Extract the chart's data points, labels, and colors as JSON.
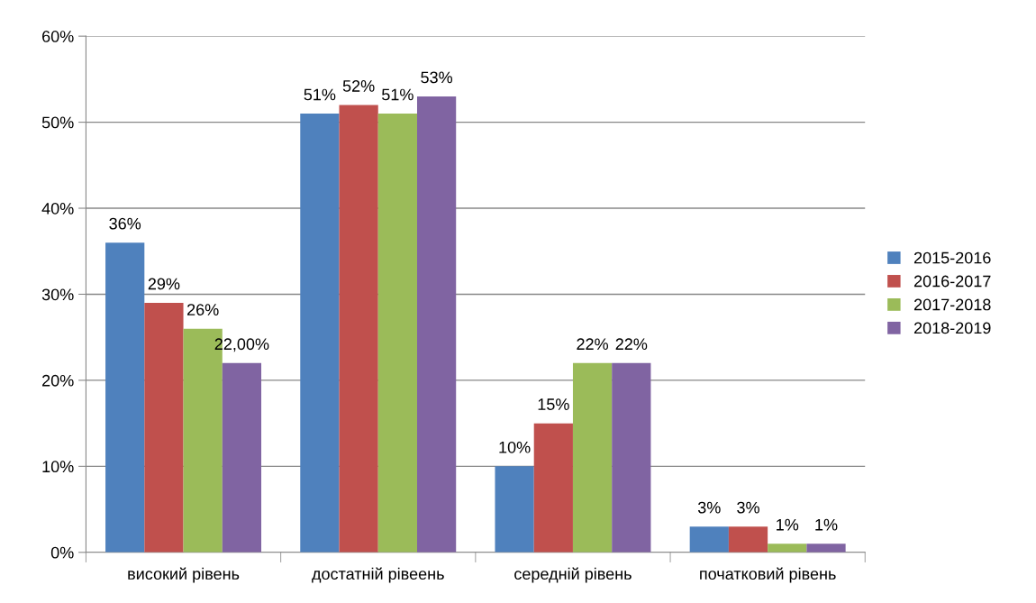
{
  "chart_data": {
    "type": "bar",
    "categories": [
      "високий рівень",
      "достатній рівеень",
      "середній рівень",
      "початковий рівень"
    ],
    "series": [
      {
        "name": "2015-2016",
        "color": "#4f81bd",
        "values": [
          36,
          51,
          10,
          3
        ],
        "value_labels": [
          "36%",
          "51%",
          "10%",
          "3%"
        ]
      },
      {
        "name": "2016-2017",
        "color": "#c0504d",
        "values": [
          29,
          52,
          15,
          3
        ],
        "value_labels": [
          "29%",
          "52%",
          "15%",
          "3%"
        ]
      },
      {
        "name": "2017-2018",
        "color": "#9bbb59",
        "values": [
          26,
          51,
          22,
          1
        ],
        "value_labels": [
          "26%",
          "51%",
          "22%",
          "1%"
        ]
      },
      {
        "name": "2018-2019",
        "color": "#8064a2",
        "values": [
          22,
          53,
          22,
          1
        ],
        "value_labels": [
          "22,00%",
          "53%",
          "22%",
          "1%"
        ]
      }
    ],
    "ylim": [
      0,
      60
    ],
    "yticks": [
      {
        "value": 0,
        "label": "0%"
      },
      {
        "value": 10,
        "label": "10%"
      },
      {
        "value": 20,
        "label": "20%"
      },
      {
        "value": 30,
        "label": "30%"
      },
      {
        "value": 40,
        "label": "40%"
      },
      {
        "value": 50,
        "label": "50%"
      },
      {
        "value": 60,
        "label": "60%"
      }
    ],
    "grid": "y",
    "legend": "right"
  }
}
